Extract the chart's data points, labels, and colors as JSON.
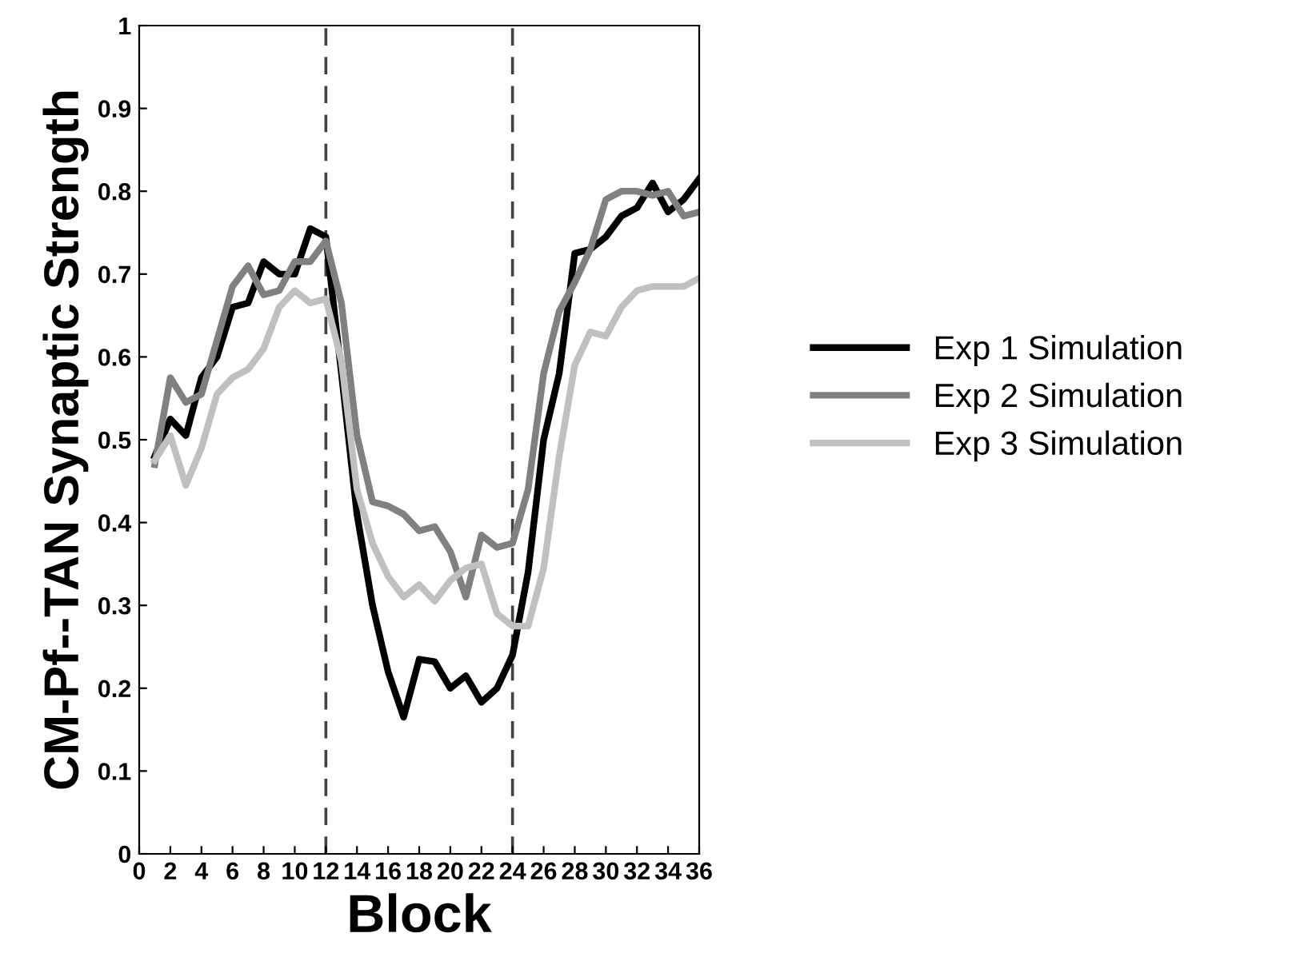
{
  "chart_data": {
    "type": "line",
    "xlabel": "Block",
    "ylabel": "CM-Pf--TAN Synaptic Strength",
    "x": [
      1,
      2,
      3,
      4,
      5,
      6,
      7,
      8,
      9,
      10,
      11,
      12,
      13,
      14,
      15,
      16,
      17,
      18,
      19,
      20,
      21,
      22,
      23,
      24,
      25,
      26,
      27,
      28,
      29,
      30,
      31,
      32,
      33,
      34,
      35,
      36
    ],
    "series": [
      {
        "name": "Exp 1 Simulation",
        "color": "#000000",
        "values": [
          0.48,
          0.525,
          0.505,
          0.575,
          0.6,
          0.66,
          0.665,
          0.715,
          0.7,
          0.7,
          0.755,
          0.745,
          0.58,
          0.41,
          0.3,
          0.22,
          0.165,
          0.235,
          0.232,
          0.2,
          0.215,
          0.183,
          0.2,
          0.24,
          0.34,
          0.5,
          0.58,
          0.725,
          0.73,
          0.745,
          0.77,
          0.78,
          0.81,
          0.775,
          0.79,
          0.815
        ]
      },
      {
        "name": "Exp 2 Simulation",
        "color": "#808080",
        "values": [
          0.47,
          0.575,
          0.545,
          0.555,
          0.62,
          0.685,
          0.71,
          0.675,
          0.68,
          0.715,
          0.715,
          0.74,
          0.665,
          0.505,
          0.425,
          0.42,
          0.41,
          0.39,
          0.395,
          0.365,
          0.31,
          0.385,
          0.37,
          0.375,
          0.44,
          0.58,
          0.655,
          0.69,
          0.73,
          0.79,
          0.8,
          0.8,
          0.795,
          0.8,
          0.77,
          0.775
        ]
      },
      {
        "name": "Exp 3 Simulation",
        "color": "#c0c0c0",
        "values": [
          0.475,
          0.505,
          0.445,
          0.49,
          0.555,
          0.575,
          0.585,
          0.61,
          0.66,
          0.68,
          0.665,
          0.67,
          0.595,
          0.44,
          0.375,
          0.335,
          0.31,
          0.325,
          0.305,
          0.33,
          0.345,
          0.35,
          0.29,
          0.275,
          0.275,
          0.345,
          0.48,
          0.59,
          0.63,
          0.625,
          0.66,
          0.68,
          0.685,
          0.685,
          0.685,
          0.695
        ]
      }
    ],
    "xlim": [
      0,
      36
    ],
    "xticks": [
      0,
      2,
      4,
      6,
      8,
      10,
      12,
      14,
      16,
      18,
      20,
      22,
      24,
      26,
      28,
      30,
      32,
      34,
      36
    ],
    "ylim": [
      0,
      1
    ],
    "yticks": [
      0,
      0.1,
      0.2,
      0.3,
      0.4,
      0.5,
      0.6,
      0.7,
      0.8,
      0.9,
      1
    ],
    "ref_lines": [
      {
        "axis": "x",
        "value": 12,
        "color": "#404040",
        "line_style": "dashed"
      },
      {
        "axis": "x",
        "value": 24,
        "color": "#404040",
        "line_style": "dashed"
      }
    ],
    "grid": false,
    "legend": "right",
    "marker": "none",
    "line_style": "solid"
  }
}
